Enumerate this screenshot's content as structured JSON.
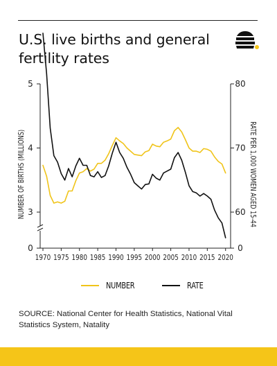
{
  "title": "U.S. live births and general fertility rates",
  "source": "SOURCE: National Center for Health Statistics, National Vital Statistics System, Natality",
  "legend": {
    "number": "NUMBER",
    "rate": "RATE"
  },
  "logo": {
    "icon": "beehive-icon",
    "dot_color": "#f5c518"
  },
  "colors": {
    "number": "#f0c419",
    "rate": "#111111",
    "bottom_bar": "#f5c518"
  },
  "chart_data": {
    "type": "line",
    "x": [
      1970,
      1971,
      1972,
      1973,
      1974,
      1975,
      1976,
      1977,
      1978,
      1979,
      1980,
      1981,
      1982,
      1983,
      1984,
      1985,
      1986,
      1987,
      1988,
      1989,
      1990,
      1991,
      1992,
      1993,
      1994,
      1995,
      1996,
      1997,
      1998,
      1999,
      2000,
      2001,
      2002,
      2003,
      2004,
      2005,
      2006,
      2007,
      2008,
      2009,
      2010,
      2011,
      2012,
      2013,
      2014,
      2015,
      2016,
      2017,
      2018,
      2019,
      2020
    ],
    "xticks": [
      1970,
      1975,
      1980,
      1985,
      1990,
      1995,
      2000,
      2005,
      2010,
      2015,
      2020
    ],
    "ylabel_left": "NUMBER OF BIRTHS (MILLIONS)",
    "ylabel_right": "RATE PER 1,000 WOMEN AGED 15-44",
    "yticks_left": [
      "0",
      "3",
      "4",
      "5"
    ],
    "yticks_right": [
      "0",
      "60",
      "70",
      "80"
    ],
    "ylim_left": [
      3,
      5
    ],
    "ylim_right": [
      60,
      80
    ],
    "axis_break": true,
    "series": [
      {
        "name": "NUMBER",
        "axis": "left",
        "color": "#f0c419",
        "values": [
          3.73,
          3.56,
          3.26,
          3.14,
          3.16,
          3.14,
          3.17,
          3.33,
          3.33,
          3.49,
          3.61,
          3.63,
          3.68,
          3.64,
          3.67,
          3.76,
          3.76,
          3.81,
          3.91,
          4.04,
          4.16,
          4.11,
          4.07,
          4.0,
          3.95,
          3.9,
          3.89,
          3.88,
          3.94,
          3.96,
          4.06,
          4.03,
          4.02,
          4.09,
          4.11,
          4.14,
          4.27,
          4.32,
          4.25,
          4.13,
          4.0,
          3.95,
          3.95,
          3.93,
          3.99,
          3.98,
          3.95,
          3.86,
          3.79,
          3.75,
          3.61
        ]
      },
      {
        "name": "RATE",
        "axis": "right",
        "color": "#111111",
        "values": [
          87.9,
          81.6,
          73.1,
          68.8,
          67.8,
          66.0,
          65.0,
          66.8,
          65.5,
          67.2,
          68.4,
          67.3,
          67.3,
          65.7,
          65.5,
          66.3,
          65.4,
          65.7,
          67.2,
          69.2,
          70.9,
          69.3,
          68.4,
          67.0,
          65.9,
          64.6,
          64.1,
          63.6,
          64.3,
          64.4,
          65.9,
          65.3,
          65.0,
          66.1,
          66.4,
          66.7,
          68.5,
          69.3,
          68.1,
          66.2,
          64.1,
          63.2,
          63.0,
          62.5,
          62.9,
          62.5,
          62.0,
          60.3,
          59.1,
          58.3,
          56.0
        ]
      }
    ]
  }
}
